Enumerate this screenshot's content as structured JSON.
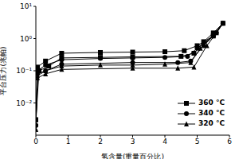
{
  "chart_data": {
    "type": "line",
    "x_label": "氢含量(重量百分比)",
    "y_label": "平台压力(兆帕)",
    "log": "y",
    "xlim": [
      0,
      6
    ],
    "xticks": [
      0,
      1,
      2,
      3,
      4,
      5,
      6
    ],
    "ylim": [
      0.001,
      10
    ],
    "yticks": [
      {
        "value": 0.01,
        "label": "10⁻²"
      },
      {
        "value": 0.1,
        "label": "10⁻¹"
      },
      {
        "value": 1,
        "label": "10⁰"
      },
      {
        "value": 10,
        "label": "10¹"
      }
    ],
    "legend": "lower right",
    "series": [
      {
        "name": "360 °C",
        "color": "#000000",
        "marker": "square",
        "x": [
          0,
          0.05,
          0.3,
          0.8,
          2,
          3,
          4,
          4.6,
          5,
          5.5,
          5.8,
          5.5,
          5.2,
          4.9,
          4.5,
          3,
          2,
          0.8,
          0.4,
          0.1,
          0
        ],
        "values": [
          0.003,
          0.13,
          0.2,
          0.35,
          0.37,
          0.38,
          0.39,
          0.42,
          0.6,
          1.2,
          3.0,
          1.5,
          0.8,
          0.35,
          0.28,
          0.27,
          0.26,
          0.25,
          0.14,
          0.1,
          0.003
        ]
      },
      {
        "name": "340 °C",
        "color": "#000000",
        "marker": "circle",
        "x": [
          0,
          0.05,
          0.3,
          0.8,
          2,
          3,
          4,
          4.7,
          5,
          5.5,
          5.8,
          5.6,
          5.2,
          4.8,
          4.4,
          3,
          0.8,
          0.3,
          0.05,
          0
        ],
        "values": [
          0.002,
          0.1,
          0.15,
          0.22,
          0.24,
          0.25,
          0.26,
          0.28,
          0.5,
          1.2,
          3.0,
          1.5,
          0.6,
          0.2,
          0.18,
          0.18,
          0.16,
          0.1,
          0.08,
          0.002
        ]
      },
      {
        "name": "320 °C",
        "color": "#000000",
        "marker": "triangle",
        "x": [
          0,
          0.05,
          0.3,
          0.8,
          2,
          3,
          4,
          4.8,
          5.1,
          5.5,
          5.8,
          5.6,
          5.3,
          4.9,
          4.4,
          3,
          0.8,
          0.3,
          0.05,
          0
        ],
        "values": [
          0.0015,
          0.07,
          0.1,
          0.14,
          0.15,
          0.15,
          0.16,
          0.18,
          0.5,
          1.3,
          3.0,
          1.5,
          0.6,
          0.13,
          0.12,
          0.12,
          0.11,
          0.08,
          0.06,
          0.0015
        ]
      }
    ]
  }
}
